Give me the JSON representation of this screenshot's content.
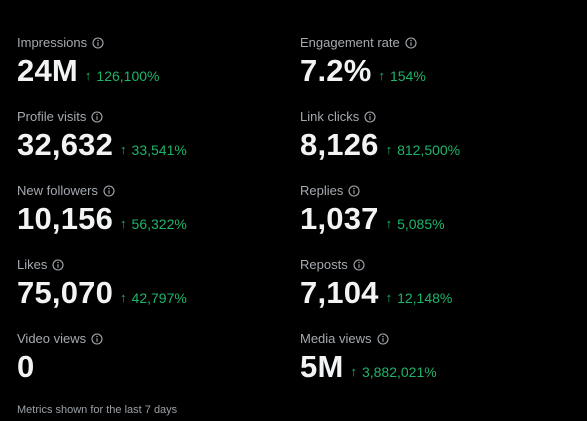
{
  "colors": {
    "background": "#000000",
    "label": "#a5aab0",
    "value": "#f2f3f4",
    "positive_change": "#1db46a"
  },
  "metrics": {
    "impressions": {
      "label": "Impressions",
      "value": "24M",
      "change": "126,100%",
      "change_icon": "arrow-up-icon"
    },
    "engagement_rate": {
      "label": "Engagement rate",
      "value": "7.2%",
      "change": "154%",
      "change_icon": "arrow-up-icon"
    },
    "profile_visits": {
      "label": "Profile visits",
      "value": "32,632",
      "change": "33,541%",
      "change_icon": "arrow-up-icon"
    },
    "link_clicks": {
      "label": "Link clicks",
      "value": "8,126",
      "change": "812,500%",
      "change_icon": "arrow-up-icon"
    },
    "new_followers": {
      "label": "New followers",
      "value": "10,156",
      "change": "56,322%",
      "change_icon": "arrow-up-icon"
    },
    "replies": {
      "label": "Replies",
      "value": "1,037",
      "change": "5,085%",
      "change_icon": "arrow-up-icon"
    },
    "likes": {
      "label": "Likes",
      "value": "75,070",
      "change": "42,797%",
      "change_icon": "arrow-up-icon"
    },
    "reposts": {
      "label": "Reposts",
      "value": "7,104",
      "change": "12,148%",
      "change_icon": "arrow-up-icon"
    },
    "video_views": {
      "label": "Video views",
      "value": "0"
    },
    "media_views": {
      "label": "Media views",
      "value": "5M",
      "change": "3,882,021%",
      "change_icon": "arrow-up-icon"
    }
  },
  "icons": {
    "info": "info-icon",
    "arrow": "↑"
  },
  "footnote": "Metrics shown for the last 7 days"
}
